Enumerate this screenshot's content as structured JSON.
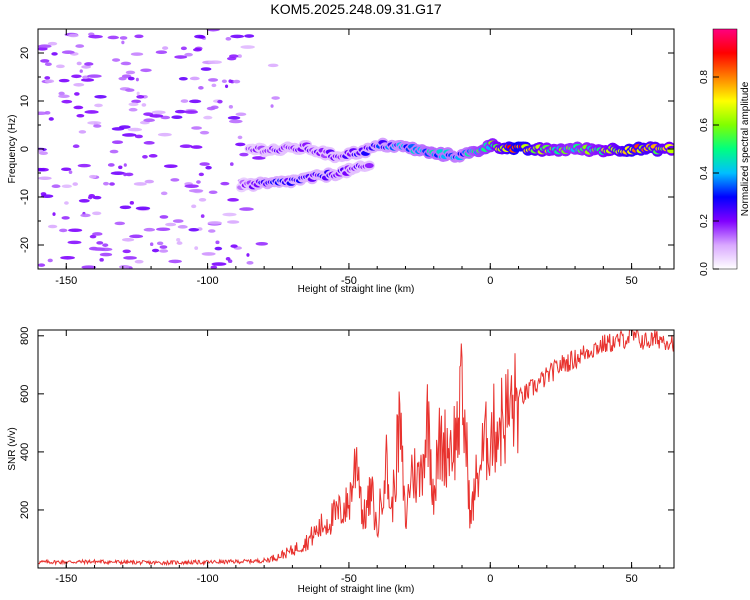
{
  "title": "KOM5.2025.248.09.31.G17",
  "chart_data": [
    {
      "type": "heatmap",
      "xlabel": "Height of straight line (km)",
      "ylabel": "Frequency (Hz)",
      "xlim": [
        -160,
        65
      ],
      "ylim": [
        -25,
        25
      ],
      "xticks": [
        -150,
        -100,
        -50,
        0,
        50
      ],
      "yticks": [
        -20,
        -10,
        0,
        10,
        20
      ],
      "colorbar": {
        "label": "Normalized spectral amplitude",
        "range": [
          0,
          1
        ],
        "ticks": [
          0.0,
          0.2,
          0.4,
          0.6,
          0.8
        ],
        "colors": [
          "#ffffff",
          "#d9a8ff",
          "#8000ff",
          "#0000ff",
          "#00bfff",
          "#00ff80",
          "#80ff00",
          "#ffff00",
          "#ff8000",
          "#ff0000",
          "#ff0080"
        ]
      },
      "ridge": [
        {
          "x": -85,
          "y": 0,
          "amp": 0.15
        },
        {
          "x": -75,
          "y": -0.2,
          "amp": 0.2
        },
        {
          "x": -65,
          "y": 0.3,
          "amp": 0.2
        },
        {
          "x": -55,
          "y": -1.5,
          "amp": 0.2
        },
        {
          "x": -45,
          "y": -0.5,
          "amp": 0.25
        },
        {
          "x": -38,
          "y": 0.8,
          "amp": 0.3
        },
        {
          "x": -30,
          "y": 0.4,
          "amp": 0.35
        },
        {
          "x": -20,
          "y": -1.0,
          "amp": 0.4
        },
        {
          "x": -10,
          "y": -1.4,
          "amp": 0.35
        },
        {
          "x": -5,
          "y": -0.5,
          "amp": 0.45
        },
        {
          "x": 0,
          "y": 0.8,
          "amp": 0.5
        },
        {
          "x": 10,
          "y": 0,
          "amp": 0.85
        },
        {
          "x": 20,
          "y": -0.2,
          "amp": 0.55
        },
        {
          "x": 30,
          "y": 0,
          "amp": 0.5
        },
        {
          "x": 40,
          "y": -0.2,
          "amp": 0.55
        },
        {
          "x": 50,
          "y": 0,
          "amp": 0.75
        },
        {
          "x": 65,
          "y": 0,
          "amp": 0.6
        }
      ],
      "secondary_ridge": [
        {
          "x": -88,
          "y": -7.5,
          "amp": 0.15
        },
        {
          "x": -78,
          "y": -7.3,
          "amp": 0.3
        },
        {
          "x": -68,
          "y": -6.5,
          "amp": 0.25
        },
        {
          "x": -58,
          "y": -5.5,
          "amp": 0.25
        },
        {
          "x": -50,
          "y": -4.5,
          "amp": 0.2
        },
        {
          "x": -42,
          "y": -3.5,
          "amp": 0.2
        }
      ]
    },
    {
      "type": "line",
      "xlabel": "Height of straight line (km)",
      "ylabel": "SNR (v/v)",
      "xlim": [
        -160,
        65
      ],
      "ylim": [
        0,
        820
      ],
      "xticks": [
        -150,
        -100,
        -50,
        0,
        50
      ],
      "yticks": [
        200,
        400,
        600,
        800
      ],
      "series": [
        {
          "name": "SNR",
          "color": "#e8322e",
          "x": [
            -160,
            -140,
            -120,
            -100,
            -90,
            -80,
            -75,
            -70,
            -65,
            -60,
            -55,
            -50,
            -47,
            -45,
            -42,
            -40,
            -37,
            -35,
            -32,
            -30,
            -28,
            -25,
            -22,
            -20,
            -18,
            -15,
            -12,
            -10,
            -8,
            -7,
            -5,
            -2,
            0,
            5,
            10,
            15,
            20,
            25,
            30,
            35,
            40,
            45,
            50,
            55,
            60,
            65
          ],
          "y": [
            20,
            22,
            18,
            20,
            22,
            25,
            40,
            60,
            90,
            140,
            180,
            220,
            400,
            160,
            260,
            120,
            380,
            180,
            500,
            150,
            340,
            300,
            520,
            260,
            420,
            420,
            450,
            600,
            350,
            160,
            300,
            420,
            460,
            520,
            580,
            620,
            660,
            700,
            720,
            750,
            770,
            780,
            800,
            780,
            790,
            780
          ]
        }
      ]
    }
  ]
}
